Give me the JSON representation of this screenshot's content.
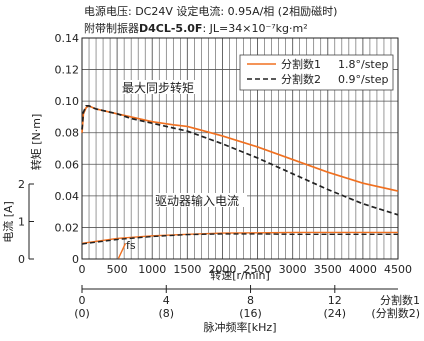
{
  "header": {
    "line1": "电源电压:  DC24V   设定电流:  0.95A/相 (2相励磁时)",
    "line2_prefix": "附带制振器",
    "line2_model": "D4CL-5.0F",
    "line2_inertia": ":  JL=34×10⁻⁷kg·m²"
  },
  "chart_data": {
    "type": "line",
    "x_axis": {
      "label": "转速[r/min]",
      "range": [
        0,
        4500
      ],
      "ticks": [
        0,
        500,
        1000,
        1500,
        2000,
        2500,
        3000,
        3500,
        4000,
        4500
      ]
    },
    "y_axis_torque": {
      "label": "转矩 [N·m]",
      "range": [
        0,
        0.14
      ],
      "ticks": [
        "0",
        "0.02",
        "0.04",
        "0.06",
        "0.08",
        "0.10",
        "0.12",
        "0.14"
      ]
    },
    "y_axis_current": {
      "label": "电流 [A]",
      "range": [
        0,
        2
      ],
      "ticks": [
        "0",
        "1",
        "2"
      ]
    },
    "pulse_axis": {
      "label": "脉冲频率[kHz]",
      "ticks_div1": [
        "0",
        "4",
        "8",
        "12"
      ],
      "ticks_div2": [
        "(0)",
        "(8)",
        "(16)",
        "(24)"
      ],
      "tick_rpm": [
        0,
        1200,
        2400,
        3600
      ],
      "right_label_1": "分割数1",
      "right_label_2": "(分割数2)"
    },
    "legend": {
      "position": "top-right",
      "entries": [
        {
          "name": "分割数1",
          "step": "1.8°/step",
          "color": "#f07020",
          "style": "solid"
        },
        {
          "name": "分割数2",
          "step": "0.9°/step",
          "color": "#222222",
          "style": "dashed"
        }
      ]
    },
    "annotations": {
      "max_torque": "最大同步转矩",
      "driver_current": "驱动器输入电流",
      "fs": "fs"
    },
    "series": [
      {
        "name": "分割数1",
        "kind": "torque",
        "color": "#f07020",
        "x": [
          0,
          20,
          60,
          100,
          150,
          200,
          300,
          400,
          500,
          700,
          1000,
          1300,
          1500,
          2000,
          2500,
          3000,
          3500,
          4000,
          4500
        ],
        "y": [
          0.08,
          0.092,
          0.096,
          0.097,
          0.096,
          0.095,
          0.094,
          0.093,
          0.092,
          0.09,
          0.087,
          0.085,
          0.084,
          0.078,
          0.071,
          0.063,
          0.055,
          0.048,
          0.043
        ]
      },
      {
        "name": "分割数2",
        "kind": "torque",
        "color": "#222222",
        "x": [
          0,
          20,
          60,
          100,
          150,
          200,
          300,
          400,
          500,
          700,
          1000,
          1300,
          1500,
          2000,
          2500,
          3000,
          3500,
          4000,
          4500
        ],
        "y": [
          0.082,
          0.093,
          0.097,
          0.097,
          0.096,
          0.095,
          0.094,
          0.093,
          0.092,
          0.089,
          0.086,
          0.083,
          0.081,
          0.073,
          0.064,
          0.054,
          0.044,
          0.035,
          0.028
        ]
      },
      {
        "name": "分割数1",
        "kind": "current",
        "color": "#f07020",
        "x": [
          0,
          500,
          1000,
          1500,
          2000,
          2500,
          3000,
          3500,
          4000,
          4500
        ],
        "y": [
          0.42,
          0.55,
          0.62,
          0.66,
          0.69,
          0.7,
          0.71,
          0.71,
          0.71,
          0.71
        ]
      },
      {
        "name": "分割数2",
        "kind": "current",
        "color": "#222222",
        "x": [
          0,
          500,
          1000,
          1500,
          2000,
          2500,
          3000,
          3500,
          4000,
          4500
        ],
        "y": [
          0.4,
          0.52,
          0.6,
          0.65,
          0.67,
          0.67,
          0.66,
          0.66,
          0.66,
          0.66
        ]
      },
      {
        "name": "fs",
        "kind": "current",
        "color": "#f07020",
        "x": [
          520,
          570,
          620
        ],
        "y": [
          0.02,
          0.22,
          0.42
        ]
      }
    ]
  }
}
